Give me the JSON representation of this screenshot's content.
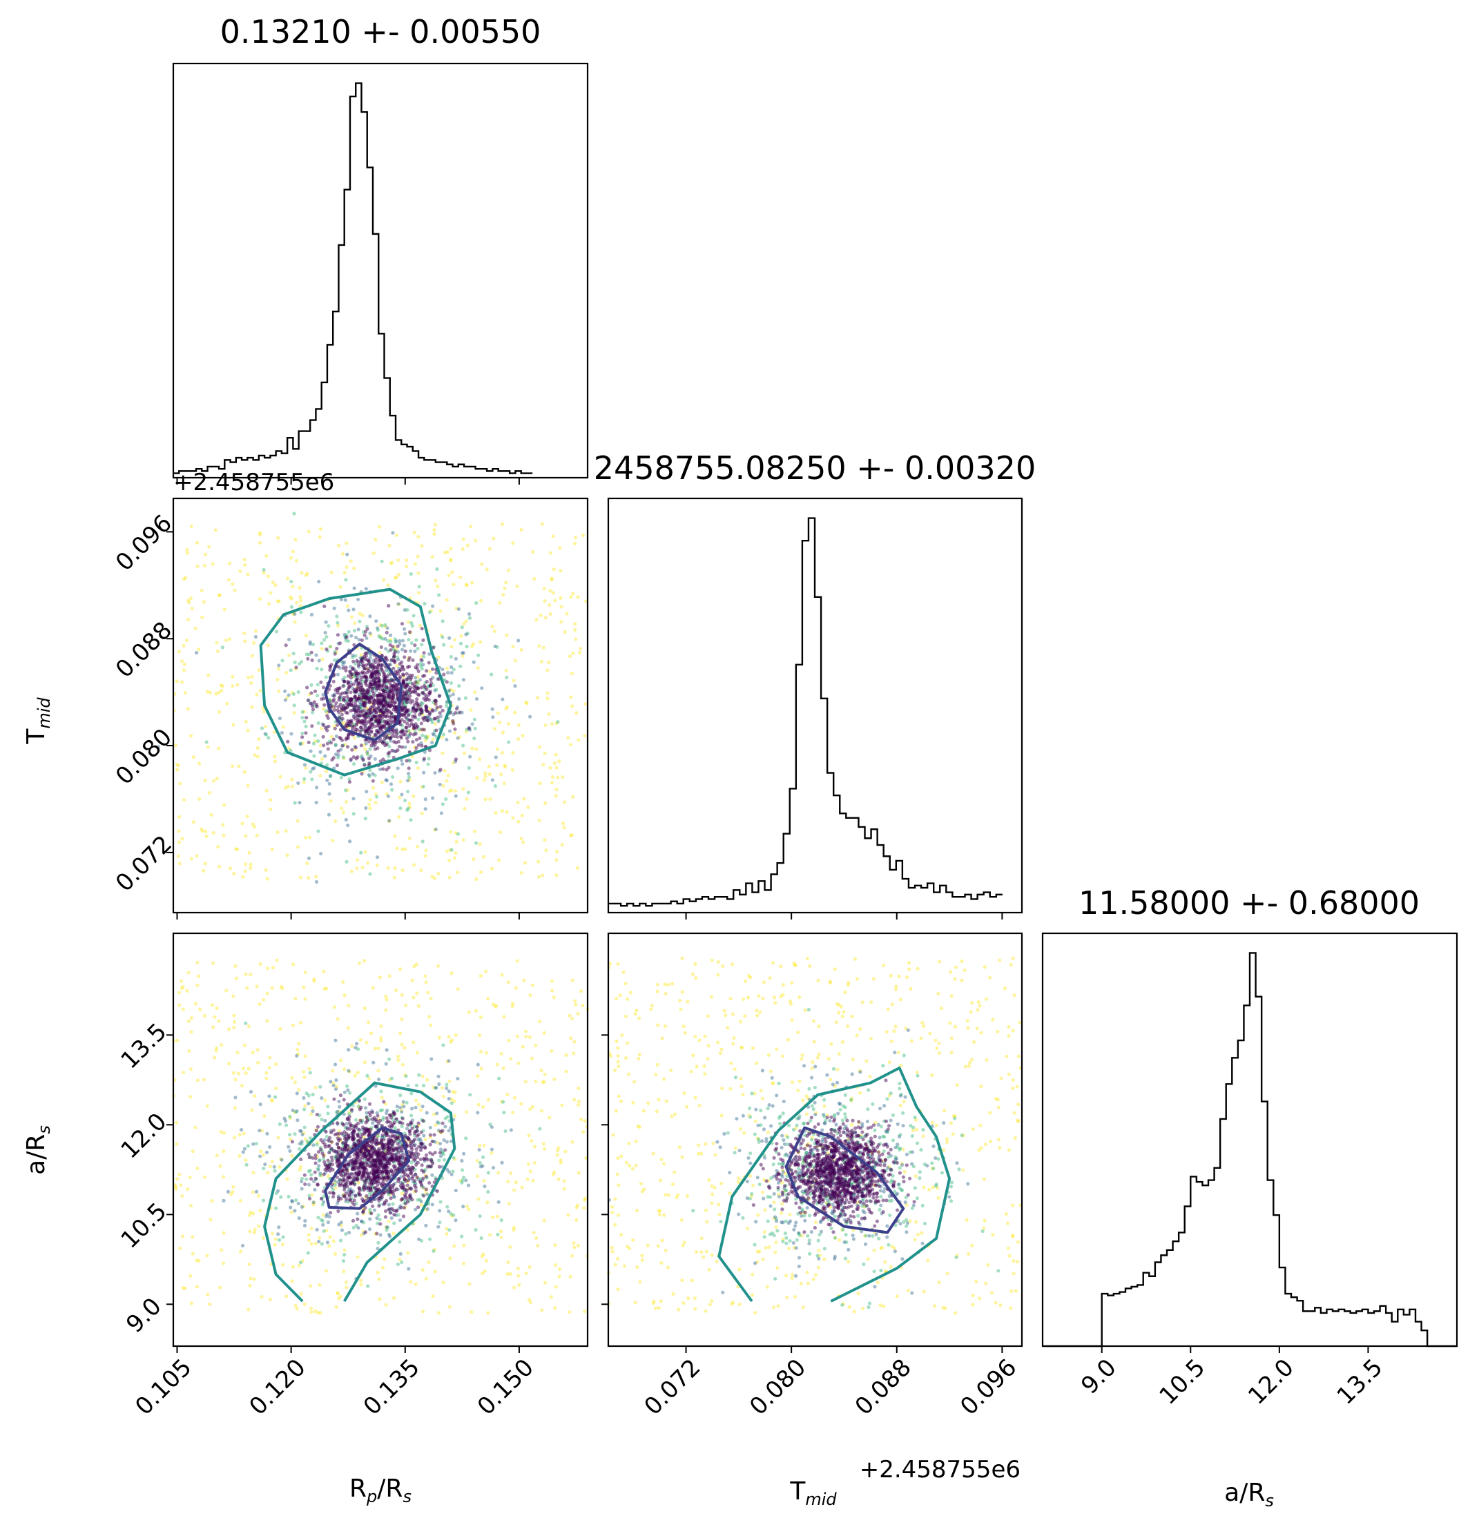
{
  "figure": {
    "type": "corner-plot",
    "parameters": [
      "R_p/R_s",
      "T_mid",
      "a/R_s"
    ]
  },
  "chart_data": [
    {
      "type": "histogram",
      "panel": "hist-rp-rs",
      "title": "0.13210 +- 0.00550",
      "xlim": [
        0.1045,
        0.159
      ],
      "xticks": [
        "0.105",
        "0.120",
        "0.135",
        "0.150"
      ],
      "bins": {
        "start": 0.1045,
        "width": 0.00075,
        "counts": [
          2,
          3,
          3,
          3,
          4,
          3,
          5,
          5,
          4,
          8,
          7,
          9,
          8,
          9,
          8,
          10,
          9,
          10,
          12,
          11,
          18,
          13,
          21,
          21,
          26,
          31,
          43,
          60,
          75,
          105,
          130,
          172,
          178,
          165,
          140,
          110,
          65,
          45,
          28,
          17,
          15,
          14,
          12,
          9,
          8,
          8,
          7,
          7,
          6,
          5,
          6,
          5,
          5,
          4,
          4,
          3,
          4,
          3,
          3,
          2,
          3,
          2,
          2
        ]
      }
    },
    {
      "type": "histogram",
      "panel": "hist-tmid",
      "title": "2458755.08250 +- 0.00320",
      "offset_label": "+2.458755e6",
      "xlim": [
        0.0661,
        0.0975
      ],
      "xticks": [
        "0.072",
        "0.080",
        "0.088",
        "0.096"
      ],
      "bins": {
        "start": 0.0661,
        "width": 0.000475,
        "counts": [
          4,
          4,
          3,
          4,
          3,
          4,
          3,
          4,
          4,
          4,
          5,
          4,
          6,
          5,
          6,
          7,
          6,
          7,
          7,
          6,
          10,
          8,
          13,
          9,
          14,
          10,
          17,
          22,
          35,
          55,
          110,
          165,
          175,
          140,
          95,
          62,
          52,
          44,
          42,
          42,
          38,
          33,
          37,
          30,
          25,
          19,
          23,
          15,
          11,
          12,
          11,
          13,
          9,
          12,
          9,
          7,
          7,
          8,
          6,
          8,
          9,
          7,
          8
        ]
      }
    },
    {
      "type": "histogram",
      "panel": "hist-a-rs",
      "title": "11.58000 +- 0.68000",
      "xlim": [
        8.0,
        15.0
      ],
      "xticks": [
        "9.0",
        "10.5",
        "12.0",
        "13.5"
      ],
      "bins": {
        "start": 8.0,
        "width": 0.1,
        "counts": [
          0,
          0,
          0,
          0,
          0,
          0,
          0,
          0,
          0,
          0,
          30,
          29,
          30,
          31,
          33,
          34,
          35,
          42,
          40,
          48,
          52,
          55,
          60,
          65,
          80,
          97,
          94,
          92,
          95,
          102,
          130,
          150,
          165,
          175,
          195,
          225,
          200,
          140,
          95,
          75,
          45,
          30,
          28,
          26,
          20,
          20,
          22,
          19,
          21,
          20,
          21,
          20,
          19,
          20,
          21,
          19,
          20,
          23,
          19,
          14,
          21,
          18,
          21,
          14,
          9,
          0,
          0,
          0,
          0,
          0
        ]
      }
    },
    {
      "type": "scatter",
      "panel": "scatter-tmid-vs-rp-rs",
      "xlabel_param": "R_p/R_s",
      "ylabel_param": "T_mid",
      "y_offset_label": "+2.458755e6",
      "xlim": [
        0.1045,
        0.159
      ],
      "ylim": [
        0.0675,
        0.0985
      ],
      "yticks": [
        "0.072",
        "0.080",
        "0.088",
        "0.096"
      ],
      "center": [
        0.1315,
        0.0833
      ],
      "spread": [
        0.0045,
        0.0025
      ],
      "contours": {
        "inner": [
          [
            0.1245,
            0.084
          ],
          [
            0.126,
            0.0862
          ],
          [
            0.129,
            0.0876
          ],
          [
            0.132,
            0.0865
          ],
          [
            0.1345,
            0.0845
          ],
          [
            0.134,
            0.0817
          ],
          [
            0.131,
            0.0804
          ],
          [
            0.127,
            0.0812
          ],
          [
            0.125,
            0.0828
          ]
        ],
        "outer": [
          [
            0.116,
            0.0875
          ],
          [
            0.119,
            0.0898
          ],
          [
            0.125,
            0.091
          ],
          [
            0.133,
            0.0917
          ],
          [
            0.137,
            0.0904
          ],
          [
            0.1385,
            0.087
          ],
          [
            0.141,
            0.083
          ],
          [
            0.139,
            0.08
          ],
          [
            0.134,
            0.079
          ],
          [
            0.127,
            0.0778
          ],
          [
            0.1195,
            0.0795
          ],
          [
            0.1165,
            0.083
          ]
        ]
      }
    },
    {
      "type": "scatter",
      "panel": "scatter-a-rs-vs-rp-rs",
      "xlabel_param": "R_p/R_s",
      "ylabel_param": "a/R_s",
      "xlabel": "R_p/R_s",
      "xlim": [
        0.1045,
        0.159
      ],
      "ylim": [
        8.3,
        15.2
      ],
      "xticks": [
        "0.105",
        "0.120",
        "0.135",
        "0.150"
      ],
      "yticks": [
        "9.0",
        "10.5",
        "12.0",
        "13.5"
      ],
      "center": [
        0.131,
        11.4
      ],
      "spread": [
        0.0045,
        0.45
      ],
      "contours": {
        "inner": [
          [
            0.1245,
            10.9
          ],
          [
            0.1275,
            11.5
          ],
          [
            0.132,
            11.95
          ],
          [
            0.1345,
            11.85
          ],
          [
            0.1355,
            11.4
          ],
          [
            0.132,
            10.9
          ],
          [
            0.129,
            10.6
          ],
          [
            0.125,
            10.62
          ]
        ],
        "outer": [
          [
            0.1215,
            9.05
          ],
          [
            0.118,
            9.5
          ],
          [
            0.1165,
            10.3
          ],
          [
            0.118,
            11.1
          ],
          [
            0.124,
            11.9
          ],
          [
            0.131,
            12.7
          ],
          [
            0.137,
            12.55
          ],
          [
            0.141,
            12.2
          ],
          [
            0.1415,
            11.6
          ],
          [
            0.137,
            10.5
          ],
          [
            0.13,
            9.7
          ],
          [
            0.127,
            9.05
          ]
        ]
      }
    },
    {
      "type": "scatter",
      "panel": "scatter-a-rs-vs-tmid",
      "xlabel_param": "T_mid",
      "ylabel_param": "a/R_s",
      "xlabel": "T_mid",
      "x_offset_label": "+2.458755e6",
      "xlim": [
        0.0661,
        0.0975
      ],
      "ylim": [
        8.3,
        15.2
      ],
      "xticks": [
        "0.072",
        "0.080",
        "0.088",
        "0.096"
      ],
      "center": [
        0.0835,
        11.2
      ],
      "spread": [
        0.0024,
        0.45
      ],
      "contours": {
        "inner": [
          [
            0.0796,
            11.3
          ],
          [
            0.081,
            11.95
          ],
          [
            0.083,
            11.8
          ],
          [
            0.0865,
            11.2
          ],
          [
            0.0885,
            10.6
          ],
          [
            0.0873,
            10.2
          ],
          [
            0.084,
            10.3
          ],
          [
            0.0805,
            10.8
          ]
        ],
        "outer": [
          [
            0.077,
            9.05
          ],
          [
            0.0745,
            9.8
          ],
          [
            0.0755,
            10.8
          ],
          [
            0.079,
            11.9
          ],
          [
            0.082,
            12.5
          ],
          [
            0.086,
            12.7
          ],
          [
            0.0882,
            12.95
          ],
          [
            0.0895,
            12.3
          ],
          [
            0.091,
            11.8
          ],
          [
            0.092,
            11.1
          ],
          [
            0.091,
            10.1
          ],
          [
            0.088,
            9.6
          ],
          [
            0.083,
            9.05
          ]
        ]
      }
    }
  ],
  "axes": {
    "x_params": [
      "R_p/R_s",
      "T_mid",
      "a/R_s"
    ],
    "y_params": [
      "T_mid",
      "a/R_s"
    ],
    "ylabels": [
      "T_mid",
      "a/R_s"
    ],
    "xlabel_main": [
      "R",
      "p",
      "/R",
      "s"
    ],
    "xlabel_tmid": [
      "T",
      "mid"
    ],
    "xlabel_a": [
      "a/R",
      "s"
    ],
    "ylabel_tmid": [
      "T",
      "mid"
    ],
    "ylabel_a": [
      "a/R",
      "s"
    ]
  },
  "offsets": {
    "row2_y_offset": "+2.458755e6",
    "col2_x_offset": "+2.458755e6"
  },
  "colors": {
    "histogram": "#000000",
    "inner_contour": "#3b3f8c",
    "outer_contour": "#21918c",
    "points_dense": "#440154",
    "points_mid": "#31688e",
    "points_green": "#35b779",
    "points_sparse": "#fde725"
  }
}
